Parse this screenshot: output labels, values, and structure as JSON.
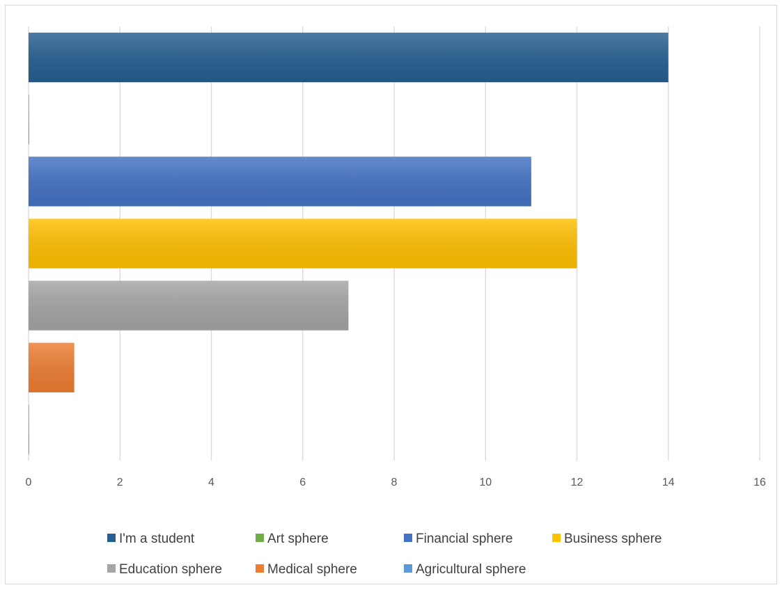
{
  "chart_data": {
    "type": "bar",
    "orientation": "horizontal",
    "title": "",
    "xlabel": "",
    "ylabel": "",
    "xlim": [
      0,
      16
    ],
    "x_ticks": [
      0,
      2,
      4,
      6,
      8,
      10,
      12,
      14,
      16
    ],
    "grid": "vertical",
    "legend_position": "bottom",
    "series": [
      {
        "name": "I'm a student",
        "value": 14,
        "color": "#255e91"
      },
      {
        "name": "Art sphere",
        "value": 0,
        "color": "#70ad47"
      },
      {
        "name": "Financial sphere",
        "value": 11,
        "color": "#4472c4"
      },
      {
        "name": "Business sphere",
        "value": 12,
        "color": "#ffc000"
      },
      {
        "name": "Education sphere",
        "value": 7,
        "color": "#a5a5a5"
      },
      {
        "name": "Medical sphere",
        "value": 1,
        "color": "#ed7d31"
      },
      {
        "name": "Agricultural sphere",
        "value": 0,
        "color": "#5b9bd5"
      }
    ]
  }
}
